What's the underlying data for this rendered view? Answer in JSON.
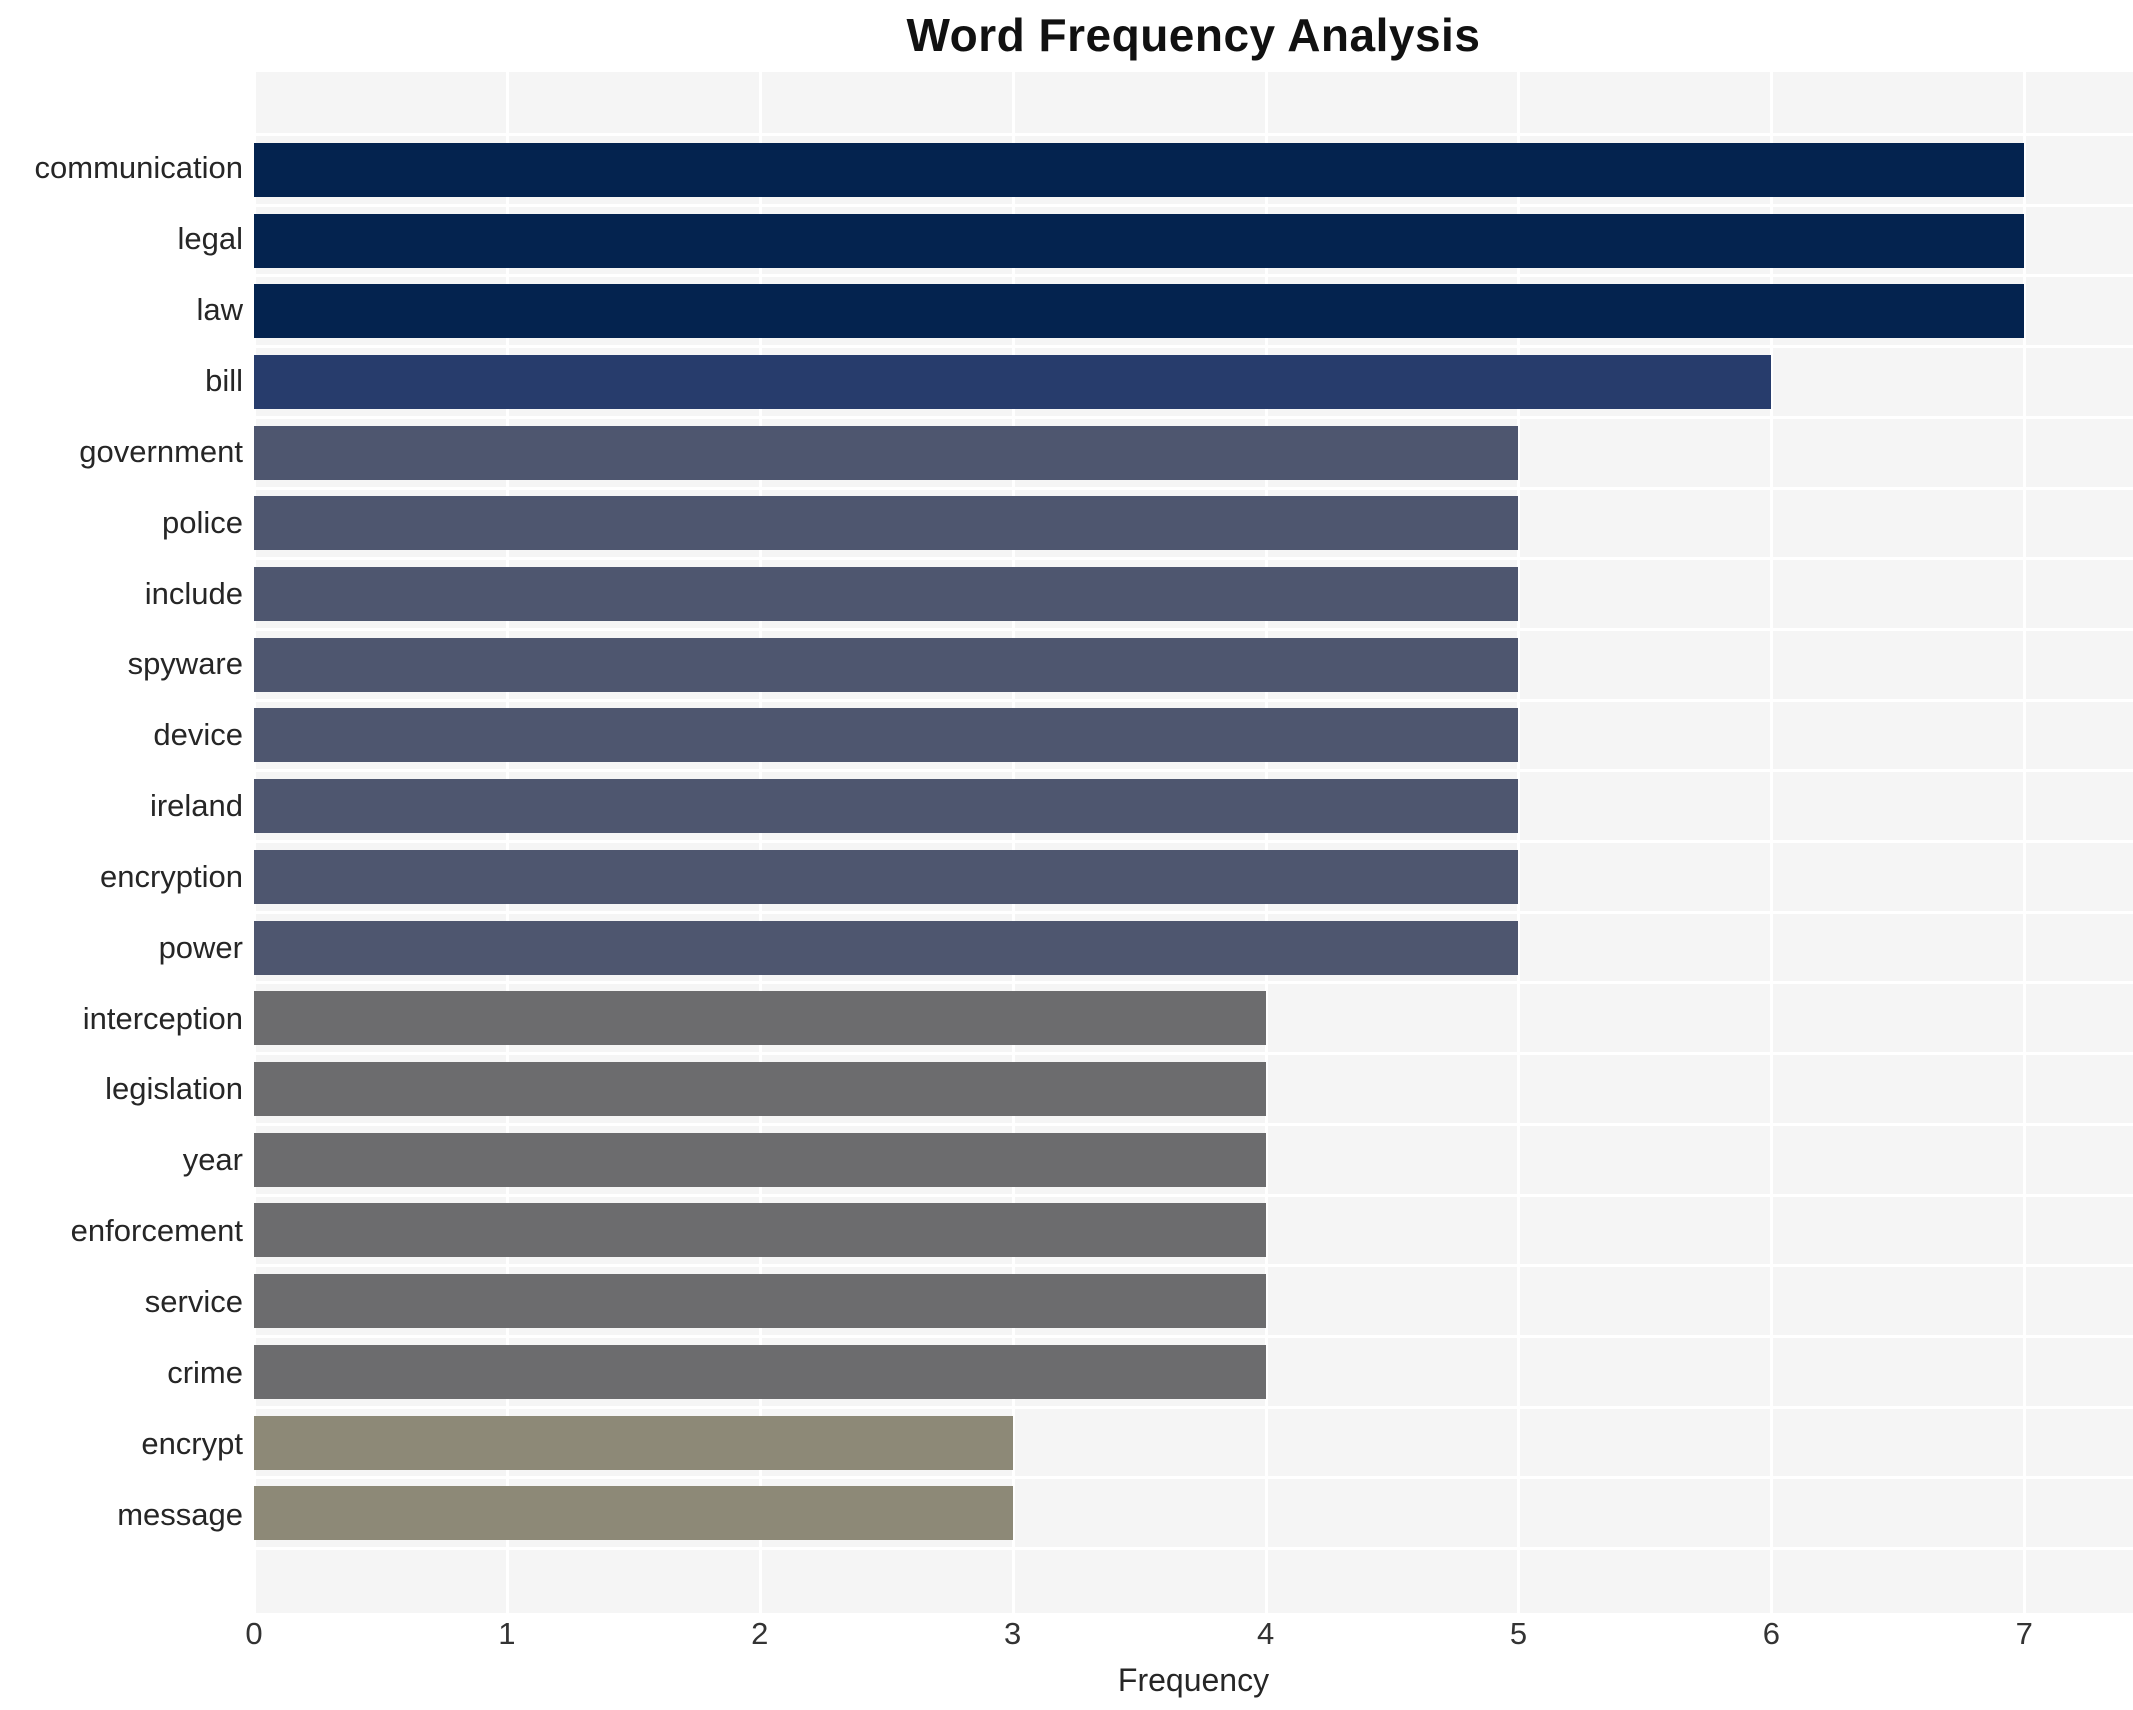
{
  "chart_data": {
    "type": "bar",
    "orientation": "horizontal",
    "title": "Word Frequency Analysis",
    "xlabel": "Frequency",
    "ylabel": "",
    "categories": [
      "communication",
      "legal",
      "law",
      "bill",
      "government",
      "police",
      "include",
      "spyware",
      "device",
      "ireland",
      "encryption",
      "power",
      "interception",
      "legislation",
      "year",
      "enforcement",
      "service",
      "crime",
      "encrypt",
      "message"
    ],
    "values": [
      7,
      7,
      7,
      6,
      5,
      5,
      5,
      5,
      5,
      5,
      5,
      5,
      4,
      4,
      4,
      4,
      4,
      4,
      3,
      3
    ],
    "bar_colors": [
      "#04234f",
      "#04234f",
      "#04234f",
      "#273c6c",
      "#4e566f",
      "#4e566f",
      "#4e566f",
      "#4e566f",
      "#4e566f",
      "#4e566f",
      "#4e566f",
      "#4e566f",
      "#6c6c6e",
      "#6c6c6e",
      "#6c6c6e",
      "#6c6c6e",
      "#6c6c6e",
      "#6c6c6e",
      "#8d8977",
      "#8d8977"
    ],
    "x_ticks": [
      "0",
      "1",
      "2",
      "3",
      "4",
      "5",
      "6",
      "7"
    ],
    "xlim": [
      0,
      7.43
    ],
    "grid": true,
    "legend": false,
    "plot_background": "#f5f5f5",
    "grid_color": "#ffffff",
    "page_background": "#ffffff",
    "title_color": "#111111",
    "label_color": "#262626"
  }
}
